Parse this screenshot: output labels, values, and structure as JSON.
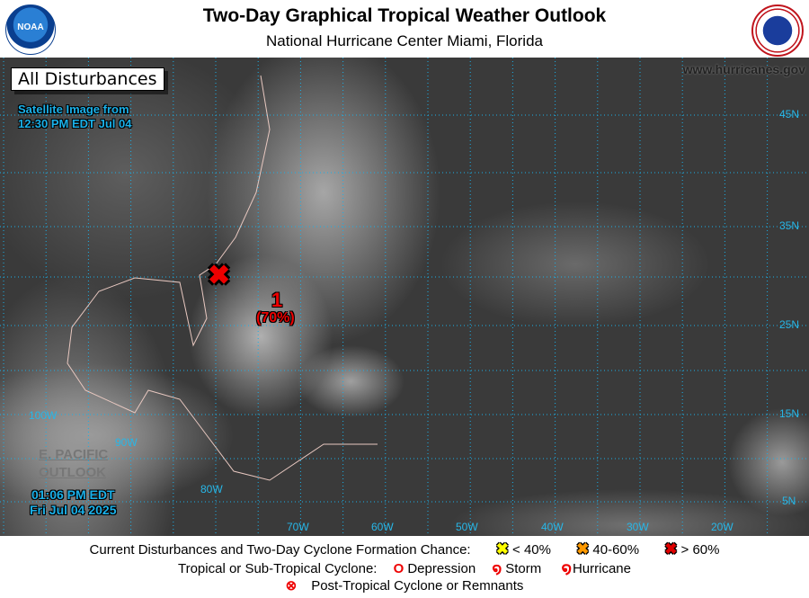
{
  "header": {
    "title": "Two-Day Graphical Tropical Weather Outlook",
    "subtitle": "National Hurricane Center  Miami, Florida",
    "left_logo": "NOAA",
    "right_logo": "National Weather Service"
  },
  "map": {
    "view_label": "All Disturbances",
    "satellite_time_line1": "Satellite Image from",
    "satellite_time_line2": "12:30 PM EDT Jul 04",
    "website": "www.hurricanes.gov",
    "epac_line1": "E. PACIFIC",
    "epac_line2": "OUTLOOK",
    "issue_time_line1": "01:06 PM EDT",
    "issue_time_line2": "Fri Jul 04 2025",
    "lat_labels": [
      "45N",
      "35N",
      "25N",
      "15N",
      "5N"
    ],
    "lon_labels": [
      "100W",
      "90W",
      "80W",
      "70W",
      "60W",
      "50W",
      "40W",
      "30W",
      "20W"
    ],
    "disturbances": [
      {
        "id": "1",
        "chance": "(70%)",
        "category": "> 60%",
        "color": "#e00000",
        "icon": "x-marker-icon"
      }
    ]
  },
  "legend": {
    "row1_label": "Current Disturbances and Two-Day Cyclone Formation Chance:",
    "low": "< 40%",
    "low_color": "#ffff00",
    "medium": "40-60%",
    "medium_color": "#ff9900",
    "high": "> 60%",
    "high_color": "#e00000",
    "row2_label": "Tropical or Sub-Tropical Cyclone:",
    "depression": "Depression",
    "storm": "Storm",
    "hurricane": "Hurricane",
    "post_tropical": "Post-Tropical Cyclone or Remnants"
  }
}
